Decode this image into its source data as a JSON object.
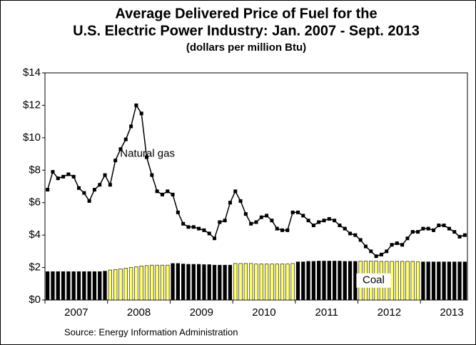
{
  "chart_data": {
    "type": "line_bar",
    "title": [
      "Average Delivered Price of Fuel for the",
      "U.S. Electric Power Industry:  Jan. 2007 - Sept. 2013"
    ],
    "subtitle": "(dollars per million Btu)",
    "source": "Source: Energy Information Administration",
    "xlim": [
      2007,
      2013.75
    ],
    "xticks": [
      2007,
      2008,
      2009,
      2010,
      2011,
      2012,
      2013
    ],
    "ylim": [
      0,
      14
    ],
    "yticks": [
      {
        "value": 0,
        "label": "$0"
      },
      {
        "value": 2,
        "label": "$2"
      },
      {
        "value": 4,
        "label": "$4"
      },
      {
        "value": 6,
        "label": "$6"
      },
      {
        "value": 8,
        "label": "$8"
      },
      {
        "value": 10,
        "label": "$10"
      },
      {
        "value": 12,
        "label": "$12"
      },
      {
        "value": 14,
        "label": "$14"
      }
    ],
    "series": [
      {
        "name": "Natural gas",
        "type": "line",
        "color": "#000000",
        "values": [
          6.8,
          7.9,
          7.5,
          7.6,
          7.75,
          7.6,
          6.9,
          6.6,
          6.1,
          6.8,
          7.1,
          7.7,
          7.1,
          8.6,
          9.3,
          9.9,
          10.7,
          12.0,
          11.5,
          8.8,
          7.7,
          6.7,
          6.5,
          6.7,
          6.5,
          5.4,
          4.7,
          4.5,
          4.5,
          4.4,
          4.3,
          4.1,
          3.8,
          4.8,
          4.9,
          6.0,
          6.7,
          6.1,
          5.3,
          4.7,
          4.8,
          5.1,
          5.2,
          4.9,
          4.4,
          4.3,
          4.3,
          5.4,
          5.4,
          5.2,
          4.9,
          4.6,
          4.8,
          4.9,
          5.0,
          4.9,
          4.6,
          4.4,
          4.1,
          4.0,
          3.7,
          3.3,
          3.0,
          2.7,
          2.8,
          3.0,
          3.4,
          3.5,
          3.4,
          3.8,
          4.2,
          4.2,
          4.4,
          4.4,
          4.3,
          4.6,
          4.6,
          4.4,
          4.2,
          3.9,
          4.0
        ]
      },
      {
        "name": "Coal",
        "type": "bar",
        "year_colors": [
          "#000000",
          "#ffff66",
          "#000000",
          "#ffff66",
          "#000000",
          "#ffff66",
          "#000000"
        ],
        "values": [
          1.75,
          1.75,
          1.75,
          1.75,
          1.75,
          1.75,
          1.75,
          1.75,
          1.75,
          1.75,
          1.75,
          1.78,
          1.85,
          1.88,
          1.92,
          1.96,
          2.0,
          2.05,
          2.1,
          2.12,
          2.15,
          2.15,
          2.15,
          2.15,
          2.25,
          2.25,
          2.22,
          2.2,
          2.2,
          2.2,
          2.18,
          2.18,
          2.15,
          2.15,
          2.15,
          2.15,
          2.25,
          2.25,
          2.25,
          2.25,
          2.22,
          2.22,
          2.22,
          2.22,
          2.22,
          2.22,
          2.22,
          2.25,
          2.35,
          2.35,
          2.38,
          2.38,
          2.4,
          2.4,
          2.4,
          2.4,
          2.4,
          2.38,
          2.38,
          2.38,
          2.4,
          2.4,
          2.4,
          2.4,
          2.38,
          2.38,
          2.38,
          2.38,
          2.38,
          2.38,
          2.38,
          2.35,
          2.35,
          2.35,
          2.35,
          2.35,
          2.35,
          2.35,
          2.35,
          2.35,
          2.35
        ]
      }
    ]
  }
}
